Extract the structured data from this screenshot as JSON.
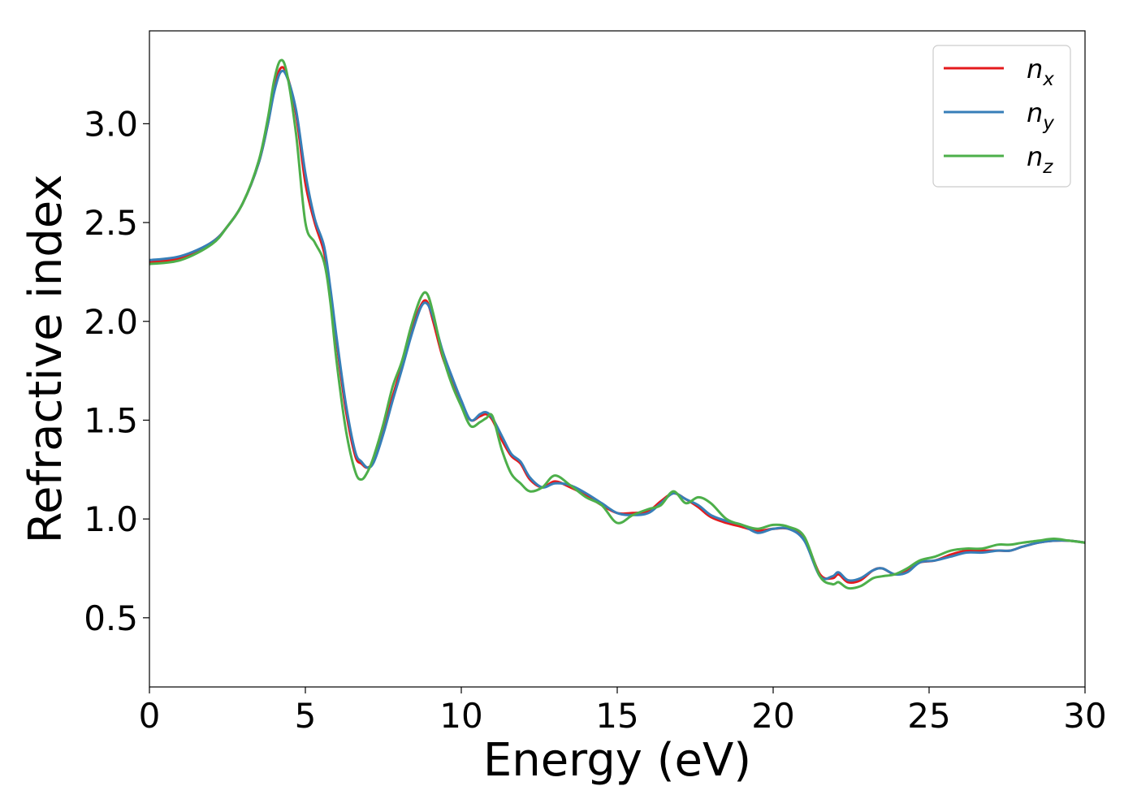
{
  "chart_data": {
    "type": "line",
    "title": "",
    "xlabel": "Energy (eV)",
    "ylabel": "Refractive index",
    "xlim": [
      0,
      30
    ],
    "ylim": [
      0.15,
      3.47
    ],
    "xticks": [
      0,
      5,
      10,
      15,
      20,
      25,
      30
    ],
    "yticks": [
      0.5,
      1.0,
      1.5,
      2.0,
      2.5,
      3.0
    ],
    "xtick_labels": [
      "0",
      "5",
      "10",
      "15",
      "20",
      "25",
      "30"
    ],
    "ytick_labels": [
      "0.5",
      "1.0",
      "1.5",
      "2.0",
      "2.5",
      "3.0"
    ],
    "grid": false,
    "legend_position": "top-right",
    "series": [
      {
        "name": "n",
        "subscript": "x",
        "color": "#e41a1c",
        "x": [
          0,
          1,
          2,
          2.5,
          3,
          3.5,
          3.8,
          4.0,
          4.2,
          4.4,
          4.7,
          5.0,
          5.3,
          5.6,
          5.8,
          6.0,
          6.3,
          6.6,
          6.8,
          7.0,
          7.2,
          7.5,
          7.8,
          8.1,
          8.4,
          8.7,
          8.9,
          9.1,
          9.4,
          9.7,
          10.0,
          10.3,
          10.6,
          10.8,
          11.0,
          11.3,
          11.6,
          11.9,
          12.2,
          12.6,
          13.0,
          13.5,
          14.0,
          14.5,
          15.0,
          15.5,
          16.0,
          16.4,
          16.8,
          17.2,
          17.6,
          18.0,
          18.5,
          19.0,
          19.5,
          20.0,
          20.5,
          21.0,
          21.5,
          21.9,
          22.1,
          22.4,
          22.8,
          23.2,
          23.5,
          23.9,
          24.3,
          24.7,
          25.2,
          25.7,
          26.2,
          26.7,
          27.2,
          27.6,
          28.0,
          28.5,
          29.0,
          29.5,
          30.0
        ],
        "y": [
          2.3,
          2.32,
          2.4,
          2.48,
          2.6,
          2.8,
          3.0,
          3.18,
          3.28,
          3.25,
          3.05,
          2.7,
          2.5,
          2.35,
          2.15,
          1.9,
          1.55,
          1.32,
          1.28,
          1.26,
          1.3,
          1.45,
          1.62,
          1.78,
          1.95,
          2.08,
          2.1,
          2.0,
          1.82,
          1.7,
          1.58,
          1.5,
          1.52,
          1.53,
          1.5,
          1.4,
          1.32,
          1.28,
          1.2,
          1.16,
          1.19,
          1.16,
          1.12,
          1.07,
          1.03,
          1.03,
          1.04,
          1.09,
          1.13,
          1.1,
          1.06,
          1.01,
          0.98,
          0.96,
          0.94,
          0.95,
          0.95,
          0.9,
          0.72,
          0.7,
          0.72,
          0.68,
          0.69,
          0.74,
          0.75,
          0.72,
          0.74,
          0.78,
          0.79,
          0.82,
          0.84,
          0.84,
          0.84,
          0.84,
          0.86,
          0.88,
          0.89,
          0.89,
          0.88
        ]
      },
      {
        "name": "n",
        "subscript": "y",
        "color": "#377eb8",
        "x": [
          0,
          1,
          2,
          2.5,
          3,
          3.5,
          3.8,
          4.0,
          4.2,
          4.4,
          4.7,
          5.0,
          5.3,
          5.6,
          5.8,
          6.0,
          6.3,
          6.6,
          6.8,
          7.0,
          7.2,
          7.5,
          7.8,
          8.1,
          8.4,
          8.7,
          8.9,
          9.1,
          9.4,
          9.7,
          10.0,
          10.3,
          10.6,
          10.8,
          11.0,
          11.3,
          11.6,
          11.9,
          12.2,
          12.6,
          13.0,
          13.5,
          14.0,
          14.5,
          15.0,
          15.5,
          16.0,
          16.4,
          16.8,
          17.2,
          17.6,
          18.0,
          18.5,
          19.0,
          19.5,
          20.0,
          20.5,
          21.0,
          21.5,
          21.9,
          22.1,
          22.4,
          22.8,
          23.2,
          23.5,
          23.9,
          24.3,
          24.7,
          25.2,
          25.7,
          26.2,
          26.7,
          27.2,
          27.6,
          28.0,
          28.5,
          29.0,
          29.5,
          30.0
        ],
        "y": [
          2.31,
          2.33,
          2.4,
          2.48,
          2.6,
          2.8,
          3.0,
          3.16,
          3.26,
          3.24,
          3.07,
          2.75,
          2.52,
          2.38,
          2.17,
          1.92,
          1.58,
          1.34,
          1.29,
          1.26,
          1.29,
          1.43,
          1.6,
          1.76,
          1.93,
          2.07,
          2.09,
          2.02,
          1.85,
          1.72,
          1.6,
          1.5,
          1.53,
          1.54,
          1.51,
          1.42,
          1.33,
          1.29,
          1.21,
          1.16,
          1.18,
          1.17,
          1.13,
          1.08,
          1.03,
          1.02,
          1.03,
          1.08,
          1.13,
          1.1,
          1.07,
          1.02,
          0.99,
          0.97,
          0.93,
          0.95,
          0.95,
          0.89,
          0.71,
          0.71,
          0.73,
          0.69,
          0.7,
          0.74,
          0.75,
          0.72,
          0.73,
          0.78,
          0.79,
          0.81,
          0.83,
          0.83,
          0.84,
          0.84,
          0.86,
          0.88,
          0.89,
          0.89,
          0.88
        ]
      },
      {
        "name": "n",
        "subscript": "z",
        "color": "#4daf4a",
        "x": [
          0,
          1,
          2,
          2.5,
          3,
          3.5,
          3.8,
          4.0,
          4.2,
          4.4,
          4.7,
          5.0,
          5.3,
          5.6,
          5.8,
          6.0,
          6.3,
          6.6,
          6.8,
          7.0,
          7.2,
          7.5,
          7.8,
          8.1,
          8.4,
          8.7,
          8.9,
          9.1,
          9.4,
          9.7,
          10.0,
          10.3,
          10.6,
          10.8,
          11.0,
          11.3,
          11.6,
          11.9,
          12.2,
          12.6,
          13.0,
          13.5,
          14.0,
          14.5,
          15.0,
          15.5,
          16.0,
          16.4,
          16.8,
          17.2,
          17.6,
          18.0,
          18.5,
          19.0,
          19.5,
          20.0,
          20.5,
          21.0,
          21.5,
          21.9,
          22.1,
          22.4,
          22.8,
          23.2,
          23.5,
          23.9,
          24.3,
          24.7,
          25.2,
          25.7,
          26.2,
          26.7,
          27.2,
          27.6,
          28.0,
          28.5,
          29.0,
          29.5,
          30.0
        ],
        "y": [
          2.29,
          2.31,
          2.39,
          2.48,
          2.6,
          2.81,
          3.03,
          3.22,
          3.32,
          3.26,
          2.95,
          2.5,
          2.4,
          2.3,
          2.1,
          1.8,
          1.45,
          1.24,
          1.2,
          1.24,
          1.32,
          1.48,
          1.67,
          1.8,
          1.98,
          2.12,
          2.14,
          2.04,
          1.83,
          1.68,
          1.57,
          1.47,
          1.49,
          1.51,
          1.52,
          1.35,
          1.23,
          1.18,
          1.14,
          1.16,
          1.22,
          1.17,
          1.11,
          1.07,
          0.98,
          1.02,
          1.05,
          1.07,
          1.14,
          1.08,
          1.11,
          1.08,
          1.0,
          0.97,
          0.95,
          0.97,
          0.96,
          0.91,
          0.71,
          0.67,
          0.68,
          0.65,
          0.66,
          0.7,
          0.71,
          0.72,
          0.75,
          0.79,
          0.81,
          0.84,
          0.85,
          0.85,
          0.87,
          0.87,
          0.88,
          0.89,
          0.9,
          0.89,
          0.88
        ]
      }
    ]
  }
}
